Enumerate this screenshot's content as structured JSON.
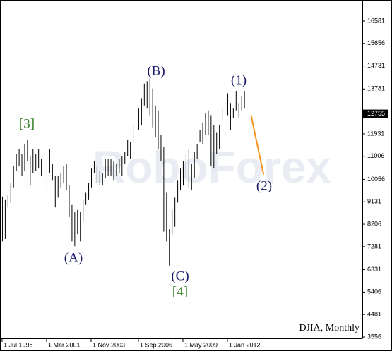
{
  "chart_data": {
    "type": "ohlc",
    "symbol_label": "DJIA, Monthly",
    "watermark": "RoboForex",
    "x": [
      6,
      8,
      10,
      12,
      14,
      16,
      18,
      20,
      22,
      24,
      26,
      28,
      30,
      32,
      34,
      36,
      38,
      40,
      42,
      44,
      46,
      48,
      50,
      52,
      54,
      56,
      58,
      60,
      62,
      64,
      66,
      68,
      70,
      72,
      74,
      76,
      78,
      80,
      82,
      84,
      86,
      88,
      90,
      92,
      94,
      96,
      98,
      100,
      102,
      104,
      106,
      108,
      110,
      112,
      114,
      116,
      118,
      120,
      122,
      124,
      126,
      128,
      130,
      132,
      134,
      136,
      138,
      140,
      142,
      144,
      146,
      148,
      150,
      152,
      154,
      156,
      158,
      160,
      162,
      164,
      166,
      168,
      170,
      172,
      174,
      176,
      178,
      180
    ],
    "high": [
      9350,
      9200,
      9400,
      9900,
      10600,
      11100,
      11300,
      11100,
      11500,
      11700,
      11000,
      11300,
      11100,
      11300,
      10900,
      10900,
      10900,
      11300,
      10700,
      10200,
      10200,
      10300,
      10600,
      10700,
      9800,
      9000,
      8700,
      8800,
      8700,
      9200,
      9500,
      9900,
      10500,
      10800,
      10600,
      10400,
      10300,
      10900,
      10900,
      10900,
      10800,
      10700,
      10900,
      11000,
      11200,
      11700,
      11600,
      12300,
      12500,
      13000,
      13400,
      14000,
      14100,
      14200,
      13800,
      13100,
      12900,
      11900,
      11400,
      9500,
      8000,
      8800,
      9300,
      10000,
      10500,
      10800,
      11100,
      11300,
      10700,
      11200,
      11500,
      12100,
      12400,
      12800,
      12900,
      12700,
      12300,
      12000,
      12300,
      13000,
      13300,
      13600,
      13200,
      13000,
      13700,
      13200,
      13500,
      13700
    ],
    "low": [
      7500,
      7600,
      8900,
      9100,
      9700,
      10400,
      10600,
      10200,
      10400,
      10800,
      9800,
      10300,
      10400,
      10500,
      10200,
      10000,
      9400,
      10300,
      10000,
      8900,
      9300,
      9700,
      9900,
      9600,
      8500,
      7500,
      7300,
      7800,
      7500,
      8300,
      9000,
      9200,
      9700,
      10300,
      9900,
      9800,
      9800,
      10100,
      10200,
      10200,
      10000,
      10200,
      10300,
      10200,
      10700,
      11000,
      10900,
      11500,
      12000,
      12100,
      12300,
      13100,
      13000,
      12700,
      12200,
      11800,
      11300,
      10800,
      7900,
      7500,
      6500,
      7800,
      8100,
      9100,
      9600,
      9800,
      10100,
      9700,
      9600,
      10100,
      10900,
      11600,
      11500,
      11900,
      11900,
      10600,
      10500,
      11100,
      11300,
      12500,
      12700,
      12700,
      12100,
      12600,
      12900,
      12600,
      12900,
      13000
    ],
    "color": "#000000",
    "xlim": [
      4.5,
      265
    ],
    "ylim": [
      3498,
      17453
    ],
    "xticks": [
      {
        "value": 6,
        "label": "1 Jul 1998"
      },
      {
        "value": 38,
        "label": "1 Mar 2001"
      },
      {
        "value": 70,
        "label": "1 Nov 2003"
      },
      {
        "value": 104,
        "label": "1 Sep 2006"
      },
      {
        "value": 136,
        "label": "1 May 2009"
      },
      {
        "value": 168,
        "label": "1 Jan 2012"
      }
    ],
    "yticks": [
      16581,
      15656,
      14731,
      13781,
      11931,
      11006,
      10056,
      9131,
      8206,
      7281,
      6331,
      5406,
      4481,
      3556
    ],
    "last_price": 12755,
    "forecast": {
      "x": [
        185,
        194
      ],
      "values": [
        12700,
        10250
      ],
      "color": "#f7941d"
    },
    "annotations": [
      {
        "text": "[3]",
        "color": "#2f7d1f"
      },
      {
        "text": "(A)",
        "color": "#1c1c6b"
      },
      {
        "text": "(B)",
        "color": "#1c1c6b"
      },
      {
        "text": "(C)",
        "color": "#1c1c6b"
      },
      {
        "text": "[4]",
        "color": "#2f7d1f"
      },
      {
        "text": "(1)",
        "color": "#1c1c6b"
      },
      {
        "text": "(2)",
        "color": "#1c1c6b"
      }
    ]
  }
}
